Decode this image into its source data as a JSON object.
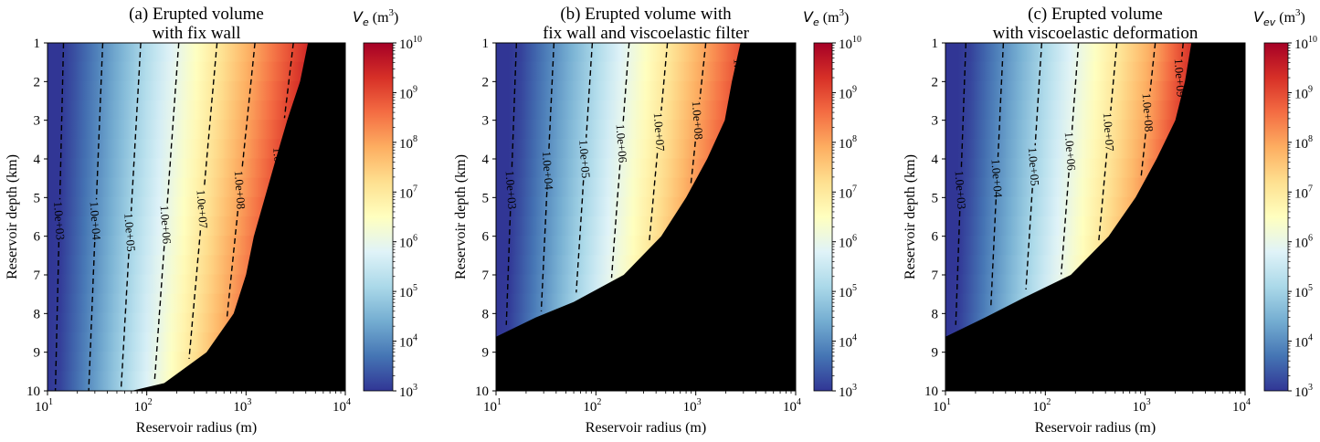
{
  "chart_data": [
    {
      "type": "heatmap",
      "title": [
        "(a) Erupted volume",
        "with fix wall"
      ],
      "xlabel": "Reservoir radius (m)",
      "ylabel": "Reservoir depth (km)",
      "x_scale": "log",
      "xlim": [
        10,
        10000
      ],
      "ylim": [
        10,
        1
      ],
      "x_ticks": [
        10,
        100,
        1000,
        10000
      ],
      "y_ticks": [
        1,
        2,
        3,
        4,
        5,
        6,
        7,
        8,
        9,
        10
      ],
      "colorbar": {
        "label_symbol": "V",
        "label_sub": "e",
        "label_unit": "(m",
        "label_unit_sup": "3",
        "label_unit_close": ")",
        "scale": "log",
        "range": [
          1000,
          10000000000
        ],
        "ticks_exp": [
          3,
          4,
          5,
          6,
          7,
          8,
          9,
          10
        ],
        "colormap": "RdYlBu_r"
      },
      "contour_levels": [
        {
          "value": 1000,
          "label": "1.0e+03"
        },
        {
          "value": 10000,
          "label": "1.0e+04"
        },
        {
          "value": 100000,
          "label": "1.0e+05"
        },
        {
          "value": 1000000,
          "label": "1.0e+06"
        },
        {
          "value": 10000000,
          "label": "1.0e+07"
        },
        {
          "value": 100000000,
          "label": "1.0e+08"
        },
        {
          "value": 1000000000,
          "label": "1.0e+09"
        }
      ],
      "contour_radius_at_depth_1km": [
        14.5,
        36,
        87,
        210,
        510,
        1230,
        3000
      ],
      "contour_radius_at_depth_10km": [
        12,
        26,
        55,
        118,
        250,
        540,
        1150
      ],
      "contour_label_depth_km": [
        5.6,
        5.6,
        5.9,
        5.7,
        5.3,
        4.8,
        4.2
      ],
      "no_eruption_boundary": [
        [
          4200,
          1
        ],
        [
          3500,
          2
        ],
        [
          2600,
          3
        ],
        [
          2000,
          4
        ],
        [
          1550,
          5
        ],
        [
          1200,
          6
        ],
        [
          1000,
          7
        ],
        [
          750,
          8
        ],
        [
          400,
          9
        ],
        [
          150,
          9.8
        ],
        [
          70,
          10
        ]
      ],
      "no_eruption_color": "#000000"
    },
    {
      "type": "heatmap",
      "title": [
        "(b) Erupted volume with",
        "fix wall and viscoelastic filter"
      ],
      "xlabel": "Reservoir radius (m)",
      "ylabel": "Reservoir depth (km)",
      "x_scale": "log",
      "xlim": [
        10,
        10000
      ],
      "ylim": [
        10,
        1
      ],
      "x_ticks": [
        10,
        100,
        1000,
        10000
      ],
      "y_ticks": [
        1,
        2,
        3,
        4,
        5,
        6,
        7,
        8,
        9,
        10
      ],
      "colorbar": {
        "label_symbol": "V",
        "label_sub": "e",
        "label_unit": "(m",
        "label_unit_sup": "3",
        "label_unit_close": ")",
        "scale": "log",
        "range": [
          1000,
          10000000000
        ],
        "ticks_exp": [
          3,
          4,
          5,
          6,
          7,
          8,
          9,
          10
        ],
        "colormap": "RdYlBu_r"
      },
      "contour_levels": [
        {
          "value": 1000,
          "label": "1.0e+03"
        },
        {
          "value": 10000,
          "label": "1.0e+04"
        },
        {
          "value": 100000,
          "label": "1.0e+05"
        },
        {
          "value": 1000000,
          "label": "1.0e+06"
        },
        {
          "value": 10000000,
          "label": "1.0e+07"
        },
        {
          "value": 100000000,
          "label": "1.0e+08"
        },
        {
          "value": 1000000000,
          "label": "1.0e+09"
        }
      ],
      "contour_radius_at_depth_1km": [
        16,
        38,
        92,
        215,
        520,
        1260,
        3000
      ],
      "contour_radius_at_depth_10km": [
        12,
        26,
        55,
        118,
        250,
        540,
        1150
      ],
      "contour_label_depth_km": [
        4.8,
        4.3,
        4.0,
        3.6,
        3.3,
        3.0,
        1.9
      ],
      "no_eruption_boundary": [
        [
          2800,
          1
        ],
        [
          2300,
          2
        ],
        [
          1950,
          3
        ],
        [
          1300,
          4
        ],
        [
          800,
          5
        ],
        [
          450,
          6
        ],
        [
          190,
          7
        ],
        [
          60,
          7.7
        ],
        [
          25,
          8.1
        ],
        [
          10,
          8.6
        ]
      ],
      "no_eruption_color": "#000000"
    },
    {
      "type": "heatmap",
      "title": [
        "(c) Erupted volume",
        "with viscoelastic deformation"
      ],
      "xlabel": "Reservoir radius (m)",
      "ylabel": "Reservoir depth (km)",
      "x_scale": "log",
      "xlim": [
        10,
        10000
      ],
      "ylim": [
        10,
        1
      ],
      "x_ticks": [
        10,
        100,
        1000,
        10000
      ],
      "y_ticks": [
        1,
        2,
        3,
        4,
        5,
        6,
        7,
        8,
        9,
        10
      ],
      "colorbar": {
        "label_symbol": "V",
        "label_sub": "ev",
        "label_unit": "(m",
        "label_unit_sup": "3",
        "label_unit_close": ")",
        "scale": "log",
        "range": [
          1000,
          10000000000
        ],
        "ticks_exp": [
          3,
          4,
          5,
          6,
          7,
          8,
          9,
          10
        ],
        "colormap": "RdYlBu_r"
      },
      "contour_levels": [
        {
          "value": 1000,
          "label": "1.0e+03"
        },
        {
          "value": 10000,
          "label": "1.0e+04"
        },
        {
          "value": 100000,
          "label": "1.0e+05"
        },
        {
          "value": 1000000,
          "label": "1.0e+06"
        },
        {
          "value": 10000000,
          "label": "1.0e+07"
        },
        {
          "value": 100000000,
          "label": "1.0e+08"
        },
        {
          "value": 1000000000,
          "label": "1.0e+09"
        }
      ],
      "contour_radius_at_depth_1km": [
        16,
        38,
        92,
        215,
        520,
        1260,
        2400
      ],
      "contour_radius_at_depth_10km": [
        12,
        26,
        55,
        118,
        250,
        540,
        1150
      ],
      "contour_label_depth_km": [
        4.8,
        4.5,
        4.2,
        3.8,
        3.3,
        2.8,
        1.9
      ],
      "no_eruption_boundary": [
        [
          2900,
          1
        ],
        [
          2500,
          2
        ],
        [
          2000,
          3
        ],
        [
          1300,
          4
        ],
        [
          800,
          5
        ],
        [
          430,
          6
        ],
        [
          180,
          7
        ],
        [
          60,
          7.6
        ],
        [
          25,
          8.1
        ],
        [
          10,
          8.6
        ]
      ],
      "no_eruption_color": "#000000"
    }
  ]
}
